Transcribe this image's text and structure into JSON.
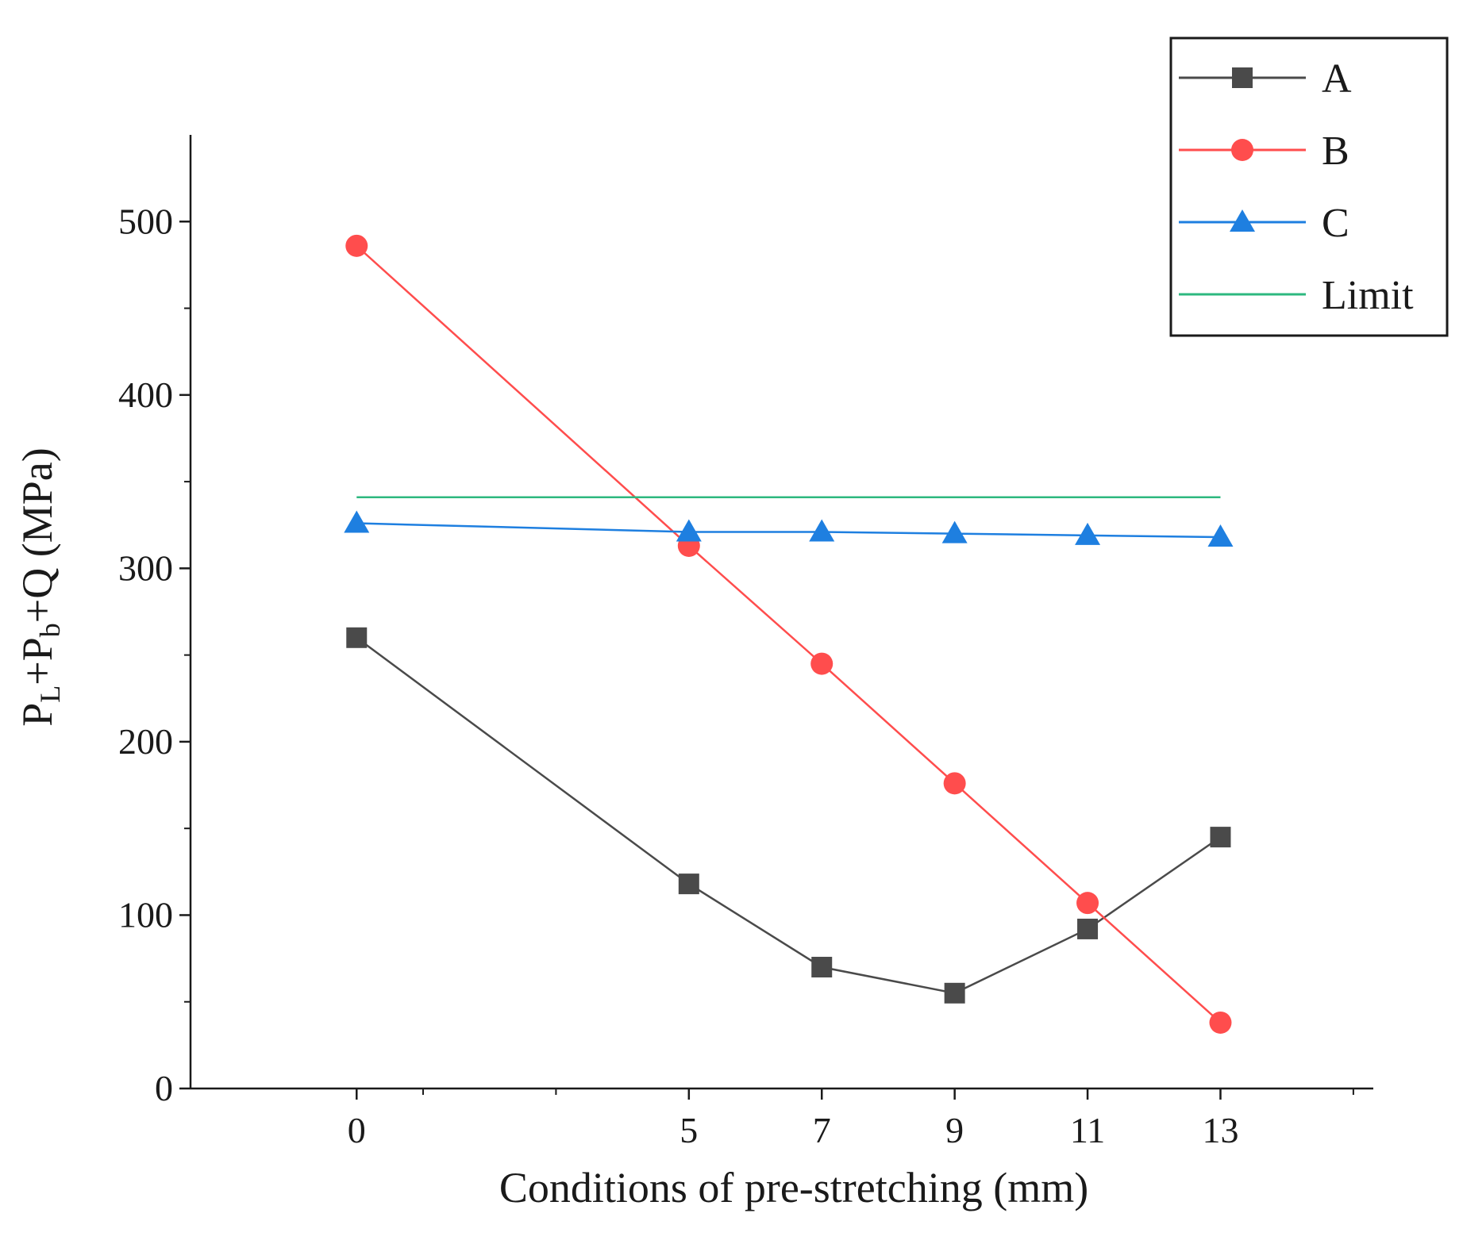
{
  "chart_data": {
    "type": "line",
    "title": "",
    "xlabel": "Conditions of pre-stretching (mm)",
    "ylabel": {
      "prefix": "P",
      "sub1": "L",
      "mid": "+P",
      "sub2": "b",
      "suffix": "+Q (MPa)"
    },
    "x": [
      0,
      5,
      7,
      9,
      11,
      13
    ],
    "x_tick_labels": [
      "0",
      "5",
      "7",
      "9",
      "11",
      "13"
    ],
    "y_tick_values": [
      0,
      100,
      200,
      300,
      400,
      500
    ],
    "y_tick_labels": [
      "0",
      "100",
      "200",
      "300",
      "400",
      "500"
    ],
    "xlim": [
      -2.5,
      15.3
    ],
    "ylim": [
      0,
      550
    ],
    "grid": false,
    "legend_position": "top-right",
    "series": [
      {
        "name": "A",
        "color": "#4a4a4a",
        "marker": "square",
        "values": [
          260,
          118,
          70,
          55,
          92,
          145
        ]
      },
      {
        "name": "B",
        "color": "#ff4d4d",
        "marker": "circle",
        "values": [
          486,
          313,
          245,
          176,
          107,
          38
        ]
      },
      {
        "name": "C",
        "color": "#1e7fe0",
        "marker": "triangle",
        "values": [
          326,
          321,
          321,
          320,
          319,
          318
        ]
      },
      {
        "name": "Limit",
        "color": "#2db87f",
        "marker": "none",
        "values": [
          341,
          341,
          341,
          341,
          341,
          341
        ]
      }
    ]
  }
}
